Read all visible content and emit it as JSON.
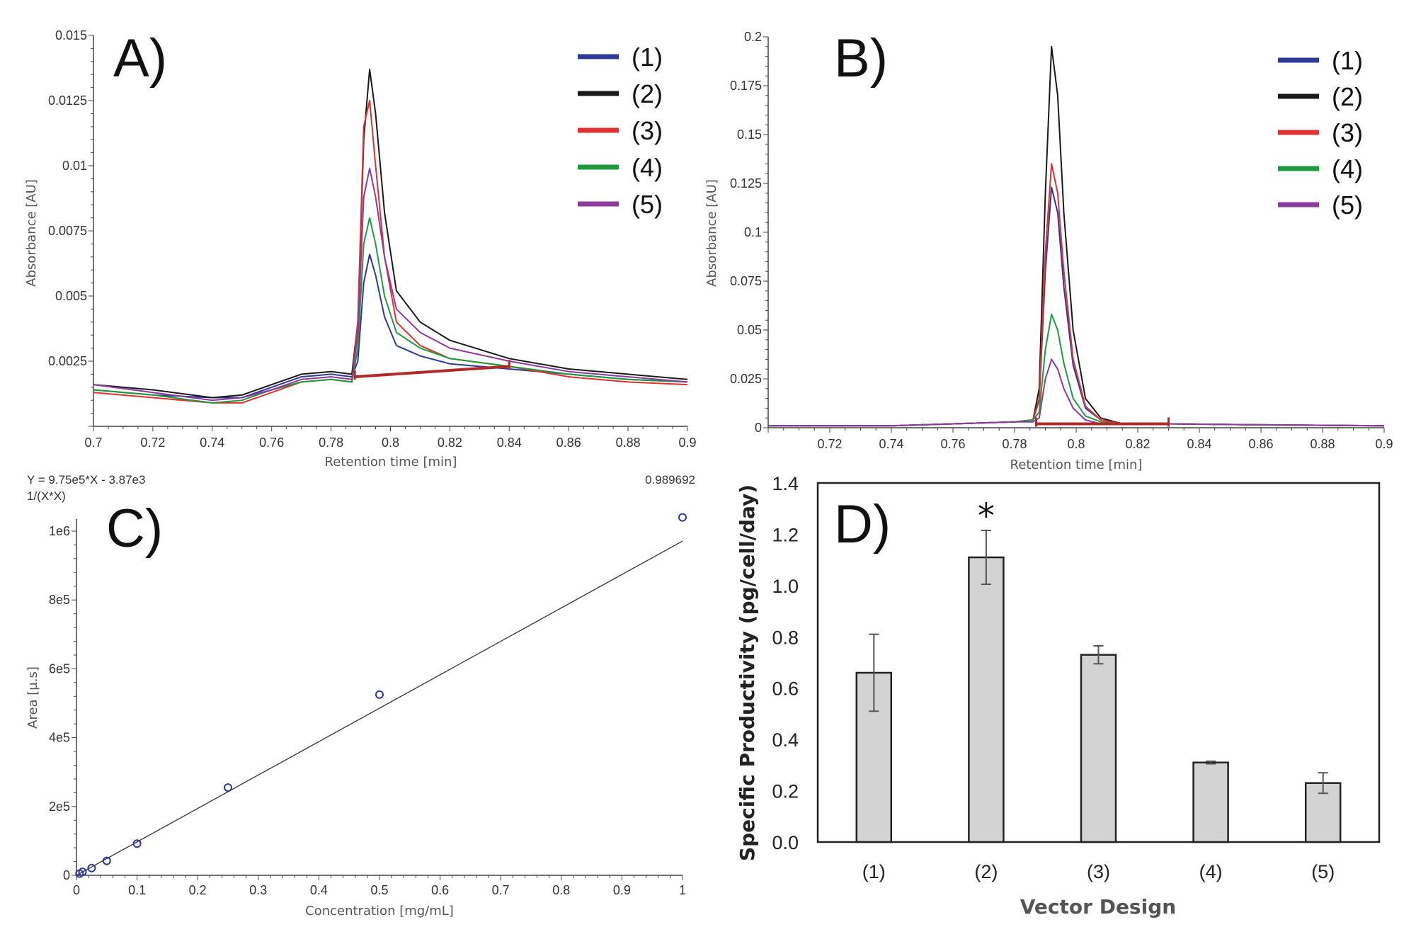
{
  "chart_data": [
    {
      "panel": "A)",
      "type": "line",
      "xlabel": "Retention time [min]",
      "ylabel": "Absorbance [AU]",
      "xlim": [
        0.7,
        0.9
      ],
      "ylim": [
        0,
        0.015
      ],
      "xticks": [
        "0.7",
        "0.72",
        "0.74",
        "0.76",
        "0.78",
        "0.8",
        "0.82",
        "0.84",
        "0.86",
        "0.88",
        "0.9"
      ],
      "yticks": [
        "0.0025",
        "0.005",
        "0.0075",
        "0.01",
        "0.0125",
        "0.015"
      ],
      "legend_position": "top-right",
      "x": [
        0.7,
        0.72,
        0.74,
        0.75,
        0.76,
        0.77,
        0.78,
        0.787,
        0.789,
        0.791,
        0.793,
        0.795,
        0.798,
        0.802,
        0.81,
        0.82,
        0.84,
        0.86,
        0.88,
        0.9
      ],
      "series": [
        {
          "name": "(1)",
          "color": "#2e3a9a",
          "values": [
            0.0014,
            0.0012,
            0.0011,
            0.0011,
            0.0015,
            0.0019,
            0.002,
            0.0019,
            0.0025,
            0.0055,
            0.0066,
            0.0058,
            0.0042,
            0.0031,
            0.0027,
            0.0024,
            0.0022,
            0.002,
            0.0018,
            0.0017
          ]
        },
        {
          "name": "(2)",
          "color": "#1a1a1a",
          "values": [
            0.0016,
            0.0014,
            0.0011,
            0.0012,
            0.0016,
            0.002,
            0.0021,
            0.002,
            0.004,
            0.011,
            0.0137,
            0.012,
            0.0082,
            0.0052,
            0.004,
            0.0033,
            0.0026,
            0.0022,
            0.002,
            0.0018
          ]
        },
        {
          "name": "(3)",
          "color": "#e03030",
          "values": [
            0.0013,
            0.0011,
            0.0009,
            0.0009,
            0.0013,
            0.0017,
            0.0018,
            0.0017,
            0.004,
            0.0115,
            0.0125,
            0.01,
            0.0065,
            0.004,
            0.0031,
            0.0026,
            0.0023,
            0.0019,
            0.0017,
            0.0016
          ]
        },
        {
          "name": "(4)",
          "color": "#1f9a3e",
          "values": [
            0.0014,
            0.0012,
            0.0009,
            0.001,
            0.0014,
            0.0017,
            0.0018,
            0.0017,
            0.003,
            0.007,
            0.008,
            0.007,
            0.005,
            0.0036,
            0.003,
            0.0026,
            0.0023,
            0.002,
            0.0018,
            0.0017
          ]
        },
        {
          "name": "(5)",
          "color": "#8e3a9e",
          "values": [
            0.0016,
            0.0013,
            0.001,
            0.0011,
            0.0014,
            0.0018,
            0.0019,
            0.0018,
            0.0035,
            0.0088,
            0.0099,
            0.0088,
            0.0065,
            0.0045,
            0.0036,
            0.003,
            0.0025,
            0.0021,
            0.0019,
            0.0017
          ]
        }
      ],
      "integration_baseline": {
        "color": "#b02a2a",
        "start": [
          0.788,
          0.0019
        ],
        "end": [
          0.84,
          0.0023
        ]
      }
    },
    {
      "panel": "B)",
      "type": "line",
      "xlabel": "Retention time [min]",
      "ylabel": "Absorbance [AU]",
      "xlim": [
        0.7,
        0.9
      ],
      "ylim": [
        0,
        0.2
      ],
      "xticks": [
        "0.72",
        "0.74",
        "0.76",
        "0.78",
        "0.8",
        "0.82",
        "0.84",
        "0.86",
        "0.88",
        "0.9"
      ],
      "yticks": [
        "0",
        "0.025",
        "0.05",
        "0.075",
        "0.1",
        "0.125",
        "0.15",
        "0.175",
        "0.2"
      ],
      "legend_position": "top-right",
      "x": [
        0.7,
        0.74,
        0.76,
        0.78,
        0.786,
        0.788,
        0.79,
        0.792,
        0.794,
        0.796,
        0.799,
        0.803,
        0.808,
        0.815,
        0.83,
        0.86,
        0.9
      ],
      "series": [
        {
          "name": "(1)",
          "color": "#2e3a9a",
          "values": [
            0.001,
            0.001,
            0.002,
            0.003,
            0.004,
            0.014,
            0.08,
            0.123,
            0.11,
            0.072,
            0.032,
            0.01,
            0.004,
            0.002,
            0.002,
            0.0015,
            0.001
          ]
        },
        {
          "name": "(2)",
          "color": "#1a1a1a",
          "values": [
            0.001,
            0.001,
            0.002,
            0.003,
            0.004,
            0.02,
            0.12,
            0.195,
            0.17,
            0.11,
            0.05,
            0.015,
            0.005,
            0.002,
            0.002,
            0.0015,
            0.001
          ]
        },
        {
          "name": "(3)",
          "color": "#e03030",
          "values": [
            0.001,
            0.001,
            0.002,
            0.003,
            0.004,
            0.015,
            0.09,
            0.135,
            0.12,
            0.08,
            0.035,
            0.011,
            0.004,
            0.002,
            0.002,
            0.0015,
            0.001
          ]
        },
        {
          "name": "(4)",
          "color": "#1f9a3e",
          "values": [
            0.001,
            0.001,
            0.002,
            0.003,
            0.004,
            0.008,
            0.04,
            0.058,
            0.05,
            0.033,
            0.015,
            0.006,
            0.003,
            0.002,
            0.002,
            0.0015,
            0.001
          ]
        },
        {
          "name": "(5)",
          "color": "#8e3a9e",
          "values": [
            0.001,
            0.001,
            0.002,
            0.003,
            0.003,
            0.005,
            0.025,
            0.035,
            0.03,
            0.02,
            0.01,
            0.004,
            0.002,
            0.002,
            0.002,
            0.0015,
            0.001
          ]
        }
      ],
      "integration_baseline": {
        "color": "#b02a2a",
        "start": [
          0.787,
          0.002
        ],
        "end": [
          0.83,
          0.002
        ]
      }
    },
    {
      "panel": "C)",
      "type": "scatter",
      "equation": "Y = 9.75e5*X - 3.87e3",
      "weighting": "1/(X*X)",
      "r_value": "0.989692",
      "xlabel": "Concentration [mg/mL]",
      "ylabel": "Area [µ.s]",
      "xlim": [
        0,
        1
      ],
      "ylim": [
        0,
        1035000
      ],
      "xticks": [
        "0",
        "0.1",
        "0.2",
        "0.3",
        "0.4",
        "0.5",
        "0.6",
        "0.7",
        "0.8",
        "0.9",
        "1"
      ],
      "yticks": [
        "0",
        "2e5",
        "4e5",
        "6e5",
        "8e5",
        "1e6"
      ],
      "points": [
        [
          0.005,
          5000
        ],
        [
          0.01,
          10000
        ],
        [
          0.025,
          21000
        ],
        [
          0.05,
          42000
        ],
        [
          0.1,
          92000
        ],
        [
          0.25,
          255000
        ],
        [
          0.5,
          525000
        ],
        [
          1.0,
          1040000
        ]
      ],
      "fit": {
        "slope": 975000,
        "intercept": -3870
      },
      "point_color": "#2e3a9a"
    },
    {
      "panel": "D)",
      "type": "bar",
      "xlabel": "Vector Design",
      "ylabel": "Specific Productivity (pg/cell/day)",
      "ylim": [
        0,
        1.4
      ],
      "yticks": [
        "0.0",
        "0.2",
        "0.4",
        "0.6",
        "0.8",
        "1.0",
        "1.2",
        "1.4"
      ],
      "categories": [
        "(1)",
        "(2)",
        "(3)",
        "(4)",
        "(5)"
      ],
      "values": [
        0.66,
        1.11,
        0.73,
        0.31,
        0.23
      ],
      "errors": [
        0.15,
        0.105,
        0.035,
        0.005,
        0.04
      ],
      "annotations": [
        {
          "category": "(2)",
          "text": "*"
        }
      ],
      "bar_color": "#d3d3d3"
    }
  ]
}
